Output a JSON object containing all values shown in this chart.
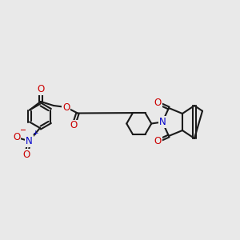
{
  "bg": "#e9e9e9",
  "bc": "#1a1a1a",
  "oc": "#cc0000",
  "nc": "#0000cc",
  "bw": 1.5,
  "fs": 8.5,
  "figsize": [
    3.0,
    3.0
  ],
  "dpi": 100,
  "xlim": [
    -5.5,
    6.5
  ],
  "ylim": [
    -3.5,
    3.5
  ]
}
